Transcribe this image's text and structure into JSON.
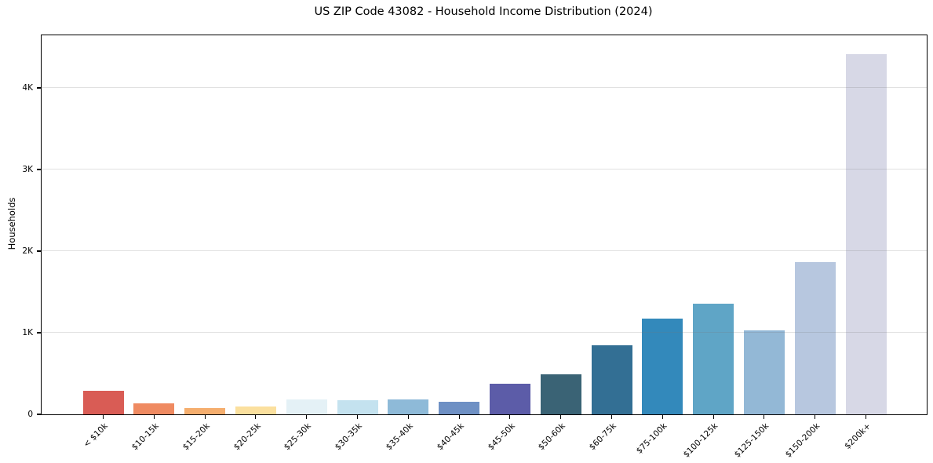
{
  "chart_data": {
    "type": "bar",
    "title": "US ZIP Code 43082 - Household Income Distribution (2024)",
    "xlabel": "",
    "ylabel": "Households",
    "categories": [
      "< $10k",
      "$10-15k",
      "$15-20k",
      "$20-25k",
      "$25-30k",
      "$30-35k",
      "$35-40k",
      "$40-45k",
      "$45-50k",
      "$50-60k",
      "$60-75k",
      "$75-100k",
      "$100-125k",
      "$125-150k",
      "$150-200k",
      "$200k+"
    ],
    "values": [
      285,
      130,
      75,
      95,
      185,
      170,
      180,
      150,
      370,
      490,
      850,
      1175,
      1350,
      1025,
      1860,
      4410
    ],
    "bar_colors": [
      "#d95c55",
      "#ef8a61",
      "#f5ae6e",
      "#fbe09e",
      "#e4f1f6",
      "#c4e2ef",
      "#8ebad8",
      "#6e90c4",
      "#5c5ca8",
      "#3a6375",
      "#336f94",
      "#3389bb",
      "#5fa5c6",
      "#93b8d6",
      "#b7c7df",
      "#d7d8e6"
    ],
    "yticks": {
      "values": [
        0,
        1000,
        2000,
        3000,
        4000
      ],
      "labels": [
        "0",
        "1K",
        "2K",
        "3K",
        "4K"
      ]
    },
    "ylim": [
      0,
      4640
    ],
    "grid": "y",
    "legend": "none",
    "background": "#ffffff"
  }
}
